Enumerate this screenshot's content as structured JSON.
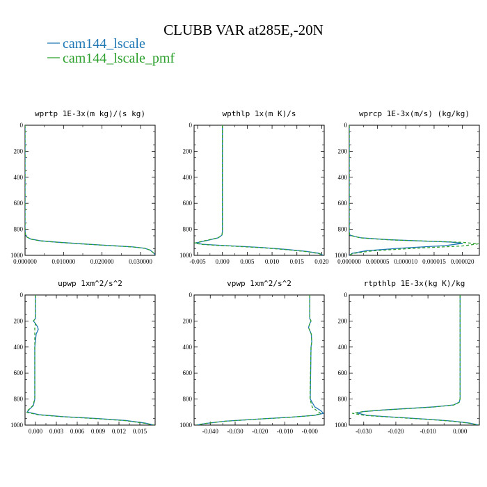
{
  "figure": {
    "title": "CLUBB VAR at285E,-20N",
    "legend": [
      {
        "label": "cam144_lscale",
        "color": "#1f77b4",
        "dash": "solid"
      },
      {
        "label": "cam144_lscale_pmf",
        "color": "#2ca02c",
        "dash": "solid"
      }
    ]
  },
  "chart_data": [
    {
      "type": "line",
      "title": "wprtp  1E-3x(m kg)/(s kg)",
      "xlim": [
        0.0,
        0.0338
      ],
      "ylim": [
        1000,
        0
      ],
      "xticks": [
        0.0,
        0.01,
        0.02,
        0.03
      ],
      "xtick_labels": [
        "0.000000",
        "0.010000",
        "0.020000",
        "0.030000"
      ],
      "yticks": [
        0,
        200,
        400,
        600,
        800,
        1000
      ],
      "ytick_labels": [
        "0",
        "200",
        "400",
        "600",
        "800",
        "1000"
      ],
      "series": [
        {
          "name": "cam144_lscale",
          "color": "#1f77b4",
          "dash": "",
          "width": 1.3,
          "x": [
            0,
            0,
            0,
            0.0001,
            0.0005,
            0.0015,
            0.004,
            0.008,
            0.012,
            0.016,
            0.02,
            0.024,
            0.028,
            0.031,
            0.0325,
            0.0335,
            0.0338
          ],
          "y": [
            0,
            400,
            800,
            840,
            860,
            875,
            888,
            898,
            906,
            914,
            921,
            928,
            935,
            945,
            960,
            985,
            1000
          ]
        },
        {
          "name": "cam144_lscale_pmf",
          "color": "#2ca02c",
          "dash": "4,3",
          "width": 1.3,
          "x": [
            0,
            0,
            0,
            0.0001,
            0.0006,
            0.0017,
            0.0042,
            0.0082,
            0.0122,
            0.0162,
            0.0202,
            0.0242,
            0.0281,
            0.0311,
            0.0326,
            0.0335,
            0.0338
          ],
          "y": [
            0,
            400,
            800,
            842,
            862,
            877,
            890,
            899,
            907,
            915,
            922,
            929,
            936,
            946,
            961,
            985,
            1000
          ]
        }
      ]
    },
    {
      "type": "line",
      "title": "wpthlp  1x(m K)/s",
      "xlim": [
        -0.0057,
        0.0205
      ],
      "ylim": [
        1000,
        0
      ],
      "xticks": [
        -0.005,
        0.0,
        0.005,
        0.01,
        0.015,
        0.02
      ],
      "xtick_labels": [
        "-0.005",
        "0.000",
        "0.005",
        "0.010",
        "0.015",
        "0.020"
      ],
      "yticks": [
        0,
        200,
        400,
        600,
        800,
        1000
      ],
      "ytick_labels": [
        "0",
        "200",
        "400",
        "600",
        "800",
        "1000"
      ],
      "series": [
        {
          "name": "cam144_lscale",
          "color": "#1f77b4",
          "dash": "",
          "width": 1.3,
          "x": [
            0,
            0,
            0,
            -0.0001,
            -0.0008,
            -0.003,
            -0.0054,
            -0.004,
            -0.001,
            0.003,
            0.008,
            0.013,
            0.017,
            0.0195,
            0.0203
          ],
          "y": [
            0,
            500,
            820,
            845,
            865,
            885,
            905,
            915,
            922,
            930,
            940,
            955,
            970,
            985,
            1000
          ]
        },
        {
          "name": "cam144_lscale_pmf",
          "color": "#2ca02c",
          "dash": "4,3",
          "width": 1.3,
          "x": [
            0,
            0,
            0,
            -0.0001,
            -0.001,
            -0.0035,
            -0.0056,
            -0.0042,
            -0.0012,
            0.0028,
            0.0078,
            0.0128,
            0.0168,
            0.0194,
            0.0203
          ],
          "y": [
            0,
            500,
            820,
            847,
            867,
            887,
            906,
            916,
            923,
            931,
            941,
            956,
            971,
            986,
            1000
          ]
        }
      ]
    },
    {
      "type": "line",
      "title": "wprcp  1E-3x(m/s) (kg/kg)",
      "xlim": [
        0.0,
        2.3e-05
      ],
      "ylim": [
        1000,
        0
      ],
      "xticks": [
        0.0,
        5e-06,
        1e-05,
        1.5e-05,
        2e-05
      ],
      "xtick_labels": [
        "0.000000",
        "0.000005",
        "0.000010",
        "0.000015",
        "0.000020"
      ],
      "yticks": [
        0,
        200,
        400,
        600,
        800,
        1000
      ],
      "ytick_labels": [
        "0",
        "200",
        "400",
        "600",
        "800",
        "1000"
      ],
      "series": [
        {
          "name": "cam144_lscale",
          "color": "#1f77b4",
          "dash": "",
          "width": 1.3,
          "x": [
            0,
            0,
            0,
            1e-07,
            2e-06,
            7e-06,
            1.3e-05,
            1.8e-05,
            2e-05,
            1.7e-05,
            9e-06,
            3e-06,
            5e-07,
            0
          ],
          "y": [
            0,
            400,
            820,
            845,
            865,
            880,
            890,
            898,
            908,
            925,
            945,
            965,
            985,
            1000
          ]
        },
        {
          "name": "cam144_lscale_pmf",
          "color": "#2ca02c",
          "dash": "4,3",
          "width": 1.3,
          "x": [
            0,
            0,
            0,
            1e-07,
            2e-06,
            7e-06,
            1.4e-05,
            2e-05,
            2.28e-05,
            2e-05,
            1.1e-05,
            4e-06,
            6e-07,
            0
          ],
          "y": [
            0,
            400,
            820,
            846,
            866,
            881,
            891,
            900,
            912,
            928,
            947,
            966,
            986,
            1000
          ]
        }
      ]
    },
    {
      "type": "line",
      "title": "upwp  1xm^2/s^2",
      "xlim": [
        -0.0015,
        0.0172
      ],
      "ylim": [
        1000,
        0
      ],
      "xticks": [
        0.0,
        0.003,
        0.006,
        0.009,
        0.012,
        0.015
      ],
      "xtick_labels": [
        "0.000",
        "0.003",
        "0.006",
        "0.009",
        "0.012",
        "0.015"
      ],
      "yticks": [
        0,
        200,
        400,
        600,
        800,
        1000
      ],
      "ytick_labels": [
        "0",
        "200",
        "400",
        "600",
        "800",
        "1000"
      ],
      "series": [
        {
          "name": "cam144_lscale",
          "color": "#1f77b4",
          "dash": "",
          "width": 1.3,
          "x": [
            0,
            0,
            -0.0003,
            0,
            0.0003,
            0.0004,
            0.0001,
            -0.0001,
            -0.0001,
            -0.0003,
            -0.0009,
            -0.0012,
            0.0005,
            0.004,
            0.009,
            0.013,
            0.0158,
            0.017
          ],
          "y": [
            0,
            180,
            200,
            220,
            245,
            265,
            300,
            400,
            800,
            850,
            880,
            900,
            920,
            935,
            950,
            965,
            985,
            1000
          ]
        },
        {
          "name": "cam144_lscale_pmf",
          "color": "#2ca02c",
          "dash": "4,3",
          "width": 1.3,
          "x": [
            0,
            0,
            -0.0003,
            0,
            -0.0001,
            -0.0001,
            -0.0001,
            -0.0001,
            -0.0001,
            -0.0004,
            -0.001,
            -0.0013,
            0.0004,
            0.0039,
            0.0089,
            0.0129,
            0.0157,
            0.017
          ],
          "y": [
            0,
            180,
            200,
            220,
            245,
            265,
            300,
            400,
            800,
            852,
            882,
            902,
            921,
            936,
            951,
            966,
            986,
            1000
          ]
        }
      ]
    },
    {
      "type": "line",
      "title": "vpwp  1xm^2/s^2",
      "xlim": [
        -0.0465,
        0.0058
      ],
      "ylim": [
        1000,
        0
      ],
      "xticks": [
        -0.04,
        -0.03,
        -0.02,
        -0.01,
        0.0
      ],
      "xtick_labels": [
        "-0.040",
        "-0.030",
        "-0.020",
        "-0.010",
        "-0.000"
      ],
      "yticks": [
        0,
        200,
        400,
        600,
        800,
        1000
      ],
      "ytick_labels": [
        "0",
        "200",
        "400",
        "600",
        "800",
        "1000"
      ],
      "series": [
        {
          "name": "cam144_lscale",
          "color": "#1f77b4",
          "dash": "",
          "width": 1.3,
          "x": [
            0,
            0,
            0.0005,
            0,
            -0.0005,
            0.0006,
            0.0008,
            0.0005,
            0.0002,
            0.002,
            0.0045,
            0.0055,
            0.002,
            -0.008,
            -0.022,
            -0.034,
            -0.042,
            -0.0455
          ],
          "y": [
            0,
            180,
            200,
            220,
            250,
            300,
            360,
            400,
            800,
            860,
            890,
            910,
            925,
            940,
            955,
            970,
            988,
            1000
          ]
        },
        {
          "name": "cam144_lscale_pmf",
          "color": "#2ca02c",
          "dash": "4,3",
          "width": 1.3,
          "x": [
            0,
            0,
            0.0005,
            0,
            -0.0005,
            0.0006,
            0.0008,
            0.0005,
            0.0001,
            0.001,
            0.003,
            0.0045,
            0.0015,
            -0.0085,
            -0.0225,
            -0.0345,
            -0.0422,
            -0.0455
          ],
          "y": [
            0,
            180,
            200,
            220,
            250,
            300,
            360,
            400,
            800,
            862,
            892,
            912,
            926,
            941,
            956,
            971,
            988,
            1000
          ]
        }
      ]
    },
    {
      "type": "line",
      "title": "rtpthlp  1E-3x(kg K)/kg",
      "xlim": [
        -0.0345,
        0.006
      ],
      "ylim": [
        1000,
        0
      ],
      "xticks": [
        -0.03,
        -0.02,
        -0.01,
        0.0
      ],
      "xtick_labels": [
        "-0.030",
        "-0.020",
        "-0.010",
        "0.000"
      ],
      "yticks": [
        0,
        200,
        400,
        600,
        800,
        1000
      ],
      "ytick_labels": [
        "0",
        "200",
        "400",
        "600",
        "800",
        "1000"
      ],
      "series": [
        {
          "name": "cam144_lscale",
          "color": "#1f77b4",
          "dash": "",
          "width": 1.3,
          "x": [
            0,
            0,
            0,
            -0.0003,
            -0.002,
            -0.008,
            -0.016,
            -0.024,
            -0.03,
            -0.032,
            -0.029,
            -0.02,
            -0.01,
            -0.002,
            0.003,
            0.0058
          ],
          "y": [
            0,
            500,
            800,
            825,
            845,
            860,
            872,
            884,
            896,
            908,
            925,
            940,
            955,
            970,
            985,
            1000
          ]
        },
        {
          "name": "cam144_lscale_pmf",
          "color": "#2ca02c",
          "dash": "4,3",
          "width": 1.3,
          "x": [
            0,
            0,
            0,
            -0.0003,
            -0.002,
            -0.0082,
            -0.0163,
            -0.0245,
            -0.0305,
            -0.0335,
            -0.0295,
            -0.0202,
            -0.0101,
            -0.0021,
            0.0029,
            0.0058
          ],
          "y": [
            0,
            500,
            800,
            826,
            846,
            861,
            873,
            885,
            897,
            910,
            926,
            941,
            956,
            971,
            986,
            1000
          ]
        }
      ]
    }
  ]
}
